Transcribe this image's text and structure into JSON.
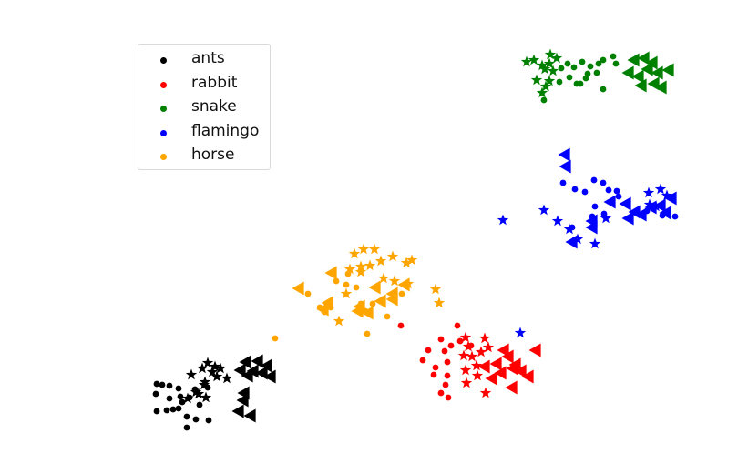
{
  "chart_data": {
    "type": "scatter",
    "title": "",
    "xlabel": "",
    "ylabel": "",
    "axes_visible": false,
    "grid": false,
    "legend_placement": "top-left",
    "marker_types": [
      "circle",
      "star",
      "triangle-left"
    ],
    "series": [
      {
        "name": "ants",
        "color": "#000000",
        "circles": [
          [
            172,
            422
          ],
          [
            178,
            423
          ],
          [
            186,
            424
          ],
          [
            171,
            433
          ],
          [
            186,
            438
          ],
          [
            196,
            427
          ],
          [
            200,
            442
          ],
          [
            190,
            450
          ],
          [
            172,
            452
          ],
          [
            183,
            451
          ],
          [
            196,
            449
          ],
          [
            205,
            458
          ],
          [
            215,
            461
          ],
          [
            229,
            462
          ],
          [
            205,
            470
          ],
          [
            208,
            437
          ],
          [
            219,
            445
          ],
          [
            214,
            428
          ],
          [
            228,
            426
          ],
          [
            198,
            436
          ]
        ],
        "stars": [
          [
            210,
            412
          ],
          [
            222,
            405
          ],
          [
            228,
            399
          ],
          [
            233,
            409
          ],
          [
            242,
            405
          ],
          [
            238,
            414
          ],
          [
            225,
            420
          ],
          [
            215,
            431
          ],
          [
            206,
            438
          ],
          [
            218,
            433
          ],
          [
            226,
            437
          ],
          [
            224,
            423
          ],
          [
            249,
            416
          ],
          [
            236,
            403
          ]
        ],
        "triangles": [
          [
            270,
            398
          ],
          [
            283,
            397
          ],
          [
            293,
            402
          ],
          [
            278,
            408
          ],
          [
            288,
            410
          ],
          [
            264,
            407
          ],
          [
            297,
            414
          ],
          [
            272,
            413
          ],
          [
            268,
            432
          ],
          [
            267,
            440
          ],
          [
            262,
            452
          ],
          [
            275,
            457
          ]
        ]
      },
      {
        "name": "rabbit",
        "color": "#ff0000",
        "circles": [
          [
            502,
            358
          ],
          [
            484,
            373
          ],
          [
            470,
            385
          ],
          [
            464,
            396
          ],
          [
            488,
            386
          ],
          [
            495,
            380
          ],
          [
            491,
            398
          ],
          [
            478,
            404
          ],
          [
            491,
            413
          ],
          [
            476,
            412
          ],
          [
            489,
            423
          ],
          [
            484,
            432
          ],
          [
            492,
            437
          ],
          [
            440,
            358
          ],
          [
            505,
            375
          ],
          [
            517,
            380
          ]
        ],
        "stars": [
          [
            511,
            371
          ],
          [
            532,
            372
          ],
          [
            514,
            381
          ],
          [
            518,
            392
          ],
          [
            509,
            391
          ],
          [
            528,
            387
          ],
          [
            536,
            382
          ],
          [
            523,
            402
          ],
          [
            511,
            407
          ],
          [
            524,
            413
          ],
          [
            512,
            421
          ],
          [
            533,
            432
          ]
        ],
        "triangles": [
          [
            553,
            385
          ],
          [
            558,
            392
          ],
          [
            566,
            401
          ],
          [
            545,
            400
          ],
          [
            550,
            410
          ],
          [
            563,
            405
          ],
          [
            580,
            414
          ],
          [
            572,
            408
          ],
          [
            588,
            385
          ],
          [
            562,
            426
          ],
          [
            540,
            416
          ],
          [
            532,
            403
          ]
        ]
      },
      {
        "name": "snake",
        "color": "#008000",
        "circles": [
          [
            616,
            75
          ],
          [
            623,
            70
          ],
          [
            630,
            74
          ],
          [
            639,
            68
          ],
          [
            648,
            73
          ],
          [
            657,
            70
          ],
          [
            662,
            66
          ],
          [
            673,
            62
          ],
          [
            676,
            70
          ],
          [
            655,
            80
          ],
          [
            643,
            86
          ],
          [
            633,
            92
          ],
          [
            625,
            85
          ],
          [
            637,
            92
          ],
          [
            662,
            98
          ],
          [
            614,
            90
          ],
          [
            597,
            110
          ],
          [
            645,
            81
          ]
        ],
        "stars": [
          [
            578,
            68
          ],
          [
            586,
            66
          ],
          [
            595,
            72
          ],
          [
            604,
            60
          ],
          [
            611,
            64
          ],
          [
            598,
            76
          ],
          [
            607,
            78
          ],
          [
            603,
            70
          ],
          [
            589,
            88
          ],
          [
            603,
            89
          ],
          [
            599,
            95
          ],
          [
            595,
            102
          ]
        ],
        "triangles": [
          [
            696,
            66
          ],
          [
            707,
            64
          ],
          [
            716,
            69
          ],
          [
            711,
            76
          ],
          [
            690,
            80
          ],
          [
            701,
            84
          ],
          [
            722,
            80
          ],
          [
            734,
            77
          ],
          [
            718,
            92
          ],
          [
            726,
            96
          ],
          [
            704,
            94
          ]
        ]
      },
      {
        "name": "flamingo",
        "color": "#0000ff",
        "circles": [
          [
            618,
            201
          ],
          [
            631,
            208
          ],
          [
            642,
            211
          ],
          [
            652,
            198
          ],
          [
            662,
            201
          ],
          [
            668,
            209
          ],
          [
            677,
            210
          ],
          [
            653,
            227
          ],
          [
            663,
            235
          ],
          [
            650,
            238
          ],
          [
            628,
            250
          ],
          [
            679,
            216
          ],
          [
            710,
            232
          ],
          [
            741,
            238
          ],
          [
            727,
            237
          ]
        ],
        "stars": [
          [
            552,
            242
          ],
          [
            597,
            231
          ],
          [
            612,
            243
          ],
          [
            625,
            252
          ],
          [
            634,
            263
          ],
          [
            653,
            268
          ],
          [
            665,
            240
          ],
          [
            712,
            212
          ],
          [
            725,
            208
          ],
          [
            732,
            215
          ],
          [
            713,
            225
          ],
          [
            720,
            227
          ],
          [
            571,
            366
          ]
        ],
        "triangles": [
          [
            620,
            170
          ],
          [
            621,
            183
          ],
          [
            650,
            250
          ],
          [
            650,
            243
          ],
          [
            628,
            266
          ],
          [
            687,
            224
          ],
          [
            697,
            233
          ],
          [
            690,
            240
          ],
          [
            670,
            222
          ],
          [
            704,
            236
          ],
          [
            715,
            228
          ],
          [
            725,
            226
          ],
          [
            737,
            218
          ],
          [
            731,
            234
          ]
        ]
      },
      {
        "name": "horse",
        "color": "#ffa500",
        "circles": [
          [
            338,
            323
          ],
          [
            351,
            338
          ],
          [
            356,
            343
          ],
          [
            363,
            338
          ],
          [
            380,
            313
          ],
          [
            391,
            316
          ],
          [
            396,
            334
          ],
          [
            401,
            342
          ],
          [
            409,
            334
          ],
          [
            420,
            329
          ],
          [
            425,
            348
          ],
          [
            441,
            323
          ],
          [
            403,
            367
          ],
          [
            302,
            372
          ],
          [
            382,
            301
          ],
          [
            369,
            309
          ]
        ],
        "stars": [
          [
            389,
            279
          ],
          [
            399,
            274
          ],
          [
            411,
            274
          ],
          [
            396,
            293
          ],
          [
            384,
            296
          ],
          [
            396,
            299
          ],
          [
            406,
            292
          ],
          [
            418,
            287
          ],
          [
            431,
            282
          ],
          [
            446,
            289
          ],
          [
            452,
            286
          ],
          [
            421,
            306
          ],
          [
            433,
            309
          ],
          [
            448,
            312
          ],
          [
            478,
            318
          ],
          [
            482,
            333
          ],
          [
            380,
            323
          ],
          [
            372,
            353
          ]
        ],
        "triangles": [
          [
            328,
            317
          ],
          [
            364,
            300
          ],
          [
            360,
            333
          ],
          [
            355,
            340
          ],
          [
            393,
            342
          ],
          [
            404,
            344
          ],
          [
            412,
            316
          ],
          [
            418,
            331
          ],
          [
            431,
            323
          ],
          [
            431,
            329
          ],
          [
            444,
            313
          ],
          [
            395,
            337
          ]
        ]
      }
    ]
  }
}
